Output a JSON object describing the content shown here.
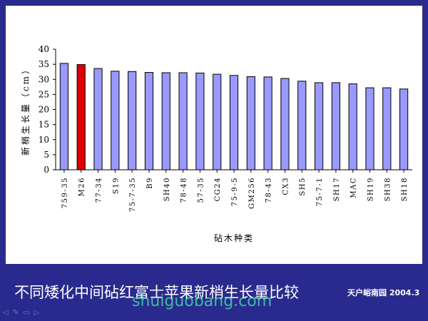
{
  "slide": {
    "title": "不同矮化中间砧红富士苹果新梢生长量比较",
    "credit": "天户峪南园 2004.3",
    "watermark": "shuiguobang.com",
    "background_color": "#2a2a8e",
    "nav_icons": [
      "prev-icon",
      "pen-icon",
      "menu-icon",
      "next-icon"
    ]
  },
  "chart_data": {
    "type": "bar",
    "categories": [
      "759-35",
      "M26",
      "77-34",
      "S19",
      "75-7-35",
      "B9",
      "SH40",
      "78-48",
      "57-35",
      "CG24",
      "75-9-5",
      "GM256",
      "78-43",
      "CX3",
      "SH5",
      "75-7-1",
      "SH17",
      "MAC",
      "SH19",
      "SH38",
      "SH18"
    ],
    "values": [
      35.3,
      34.9,
      33.6,
      32.7,
      32.6,
      32.3,
      32.2,
      32.2,
      32.1,
      31.7,
      31.3,
      30.9,
      30.8,
      30.3,
      29.4,
      28.9,
      28.9,
      28.5,
      27.2,
      27.2,
      26.8
    ],
    "highlight_index": 1,
    "bar_color": "#9999ff",
    "highlight_color": "#dd0000",
    "title": "",
    "xlabel": "砧木种类",
    "ylabel": "新梢生长量（cm）",
    "ylim": [
      0,
      40
    ],
    "yticks": [
      0,
      5,
      10,
      15,
      20,
      25,
      30,
      35,
      40
    ],
    "grid": false,
    "legend": "none"
  }
}
